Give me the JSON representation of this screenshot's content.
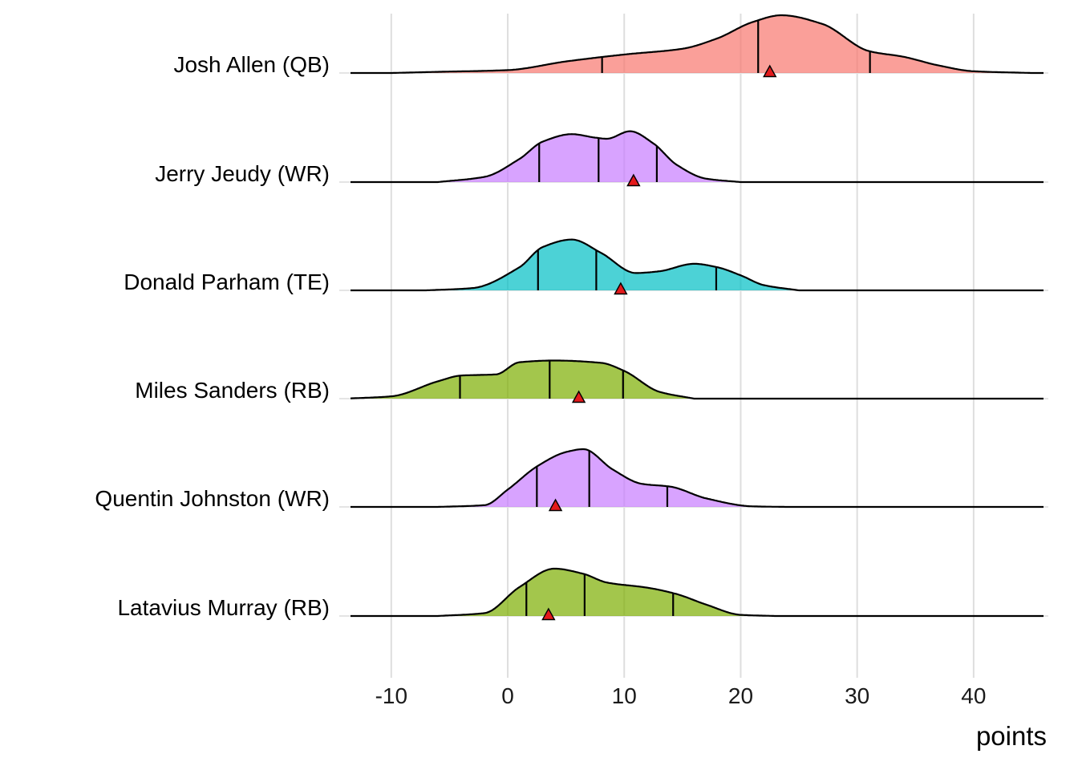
{
  "chart_data": {
    "type": "ridgeline",
    "xlabel": "points",
    "xlim": [
      -13.5,
      46
    ],
    "x_ticks": [
      -10,
      0,
      10,
      20,
      30,
      40
    ],
    "x_tick_labels": [
      "-10",
      "0",
      "10",
      "20",
      "30",
      "40"
    ],
    "grid": "vertical",
    "legend": "none",
    "marker_color": "#e41a1c",
    "rows": [
      {
        "label": "Josh Allen (QB)",
        "color": "#f8766d",
        "quantiles": [
          8.1,
          21.5,
          31.1
        ],
        "marker": 22.5,
        "density": [
          [
            -10,
            0
          ],
          [
            -6,
            0.02
          ],
          [
            0,
            0.05
          ],
          [
            5,
            0.2
          ],
          [
            10,
            0.32
          ],
          [
            15,
            0.42
          ],
          [
            18,
            0.6
          ],
          [
            21,
            0.88
          ],
          [
            23.5,
            1.0
          ],
          [
            27,
            0.85
          ],
          [
            31,
            0.38
          ],
          [
            34,
            0.28
          ],
          [
            37,
            0.13
          ],
          [
            40,
            0.03
          ],
          [
            45,
            0
          ]
        ]
      },
      {
        "label": "Jerry Jeudy (WR)",
        "color": "#c77cff",
        "quantiles": [
          2.7,
          7.8,
          12.8
        ],
        "marker": 10.8,
        "density": [
          [
            -6,
            0
          ],
          [
            -2,
            0.09
          ],
          [
            1,
            0.4
          ],
          [
            3,
            0.7
          ],
          [
            5.5,
            0.83
          ],
          [
            7.5,
            0.77
          ],
          [
            8.5,
            0.75
          ],
          [
            10.5,
            0.88
          ],
          [
            12.5,
            0.67
          ],
          [
            14.5,
            0.3
          ],
          [
            17,
            0.06
          ],
          [
            20,
            0
          ]
        ]
      },
      {
        "label": "Donald Parham (TE)",
        "color": "#00bfc4",
        "quantiles": [
          2.6,
          7.6,
          17.9
        ],
        "marker": 9.7,
        "density": [
          [
            -7,
            0
          ],
          [
            -3,
            0.04
          ],
          [
            1,
            0.4
          ],
          [
            3,
            0.75
          ],
          [
            5.5,
            0.88
          ],
          [
            8,
            0.65
          ],
          [
            11,
            0.3
          ],
          [
            13,
            0.33
          ],
          [
            16,
            0.46
          ],
          [
            18,
            0.4
          ],
          [
            20,
            0.26
          ],
          [
            22,
            0.09
          ],
          [
            25,
            0
          ]
        ]
      },
      {
        "label": "Miles Sanders (RB)",
        "color": "#7cae00",
        "quantiles": [
          -4.1,
          3.6,
          9.9
        ],
        "marker": 6.1,
        "density": [
          [
            -14,
            0
          ],
          [
            -10,
            0.04
          ],
          [
            -6,
            0.3
          ],
          [
            -4,
            0.4
          ],
          [
            -1,
            0.42
          ],
          [
            1,
            0.63
          ],
          [
            4,
            0.66
          ],
          [
            8,
            0.62
          ],
          [
            10,
            0.48
          ],
          [
            13,
            0.12
          ],
          [
            16,
            0
          ]
        ]
      },
      {
        "label": "Quentin Johnston (WR)",
        "color": "#c77cff",
        "quantiles": [
          2.5,
          7.0,
          13.7
        ],
        "marker": 4.1,
        "density": [
          [
            -6,
            0
          ],
          [
            -2,
            0.03
          ],
          [
            0,
            0.3
          ],
          [
            2.5,
            0.7
          ],
          [
            5,
            0.95
          ],
          [
            6.5,
            1.0
          ],
          [
            9,
            0.65
          ],
          [
            11.5,
            0.4
          ],
          [
            14,
            0.35
          ],
          [
            17,
            0.15
          ],
          [
            21,
            0.01
          ],
          [
            24,
            0
          ]
        ]
      },
      {
        "label": "Latavius Murray (RB)",
        "color": "#7cae00",
        "quantiles": [
          1.6,
          6.6,
          14.2
        ],
        "marker": 3.5,
        "density": [
          [
            -6,
            0
          ],
          [
            -2,
            0.05
          ],
          [
            1,
            0.5
          ],
          [
            4,
            0.82
          ],
          [
            6.5,
            0.73
          ],
          [
            8.5,
            0.58
          ],
          [
            12,
            0.49
          ],
          [
            14.5,
            0.38
          ],
          [
            17,
            0.2
          ],
          [
            20,
            0.02
          ],
          [
            23,
            0
          ]
        ]
      }
    ]
  }
}
